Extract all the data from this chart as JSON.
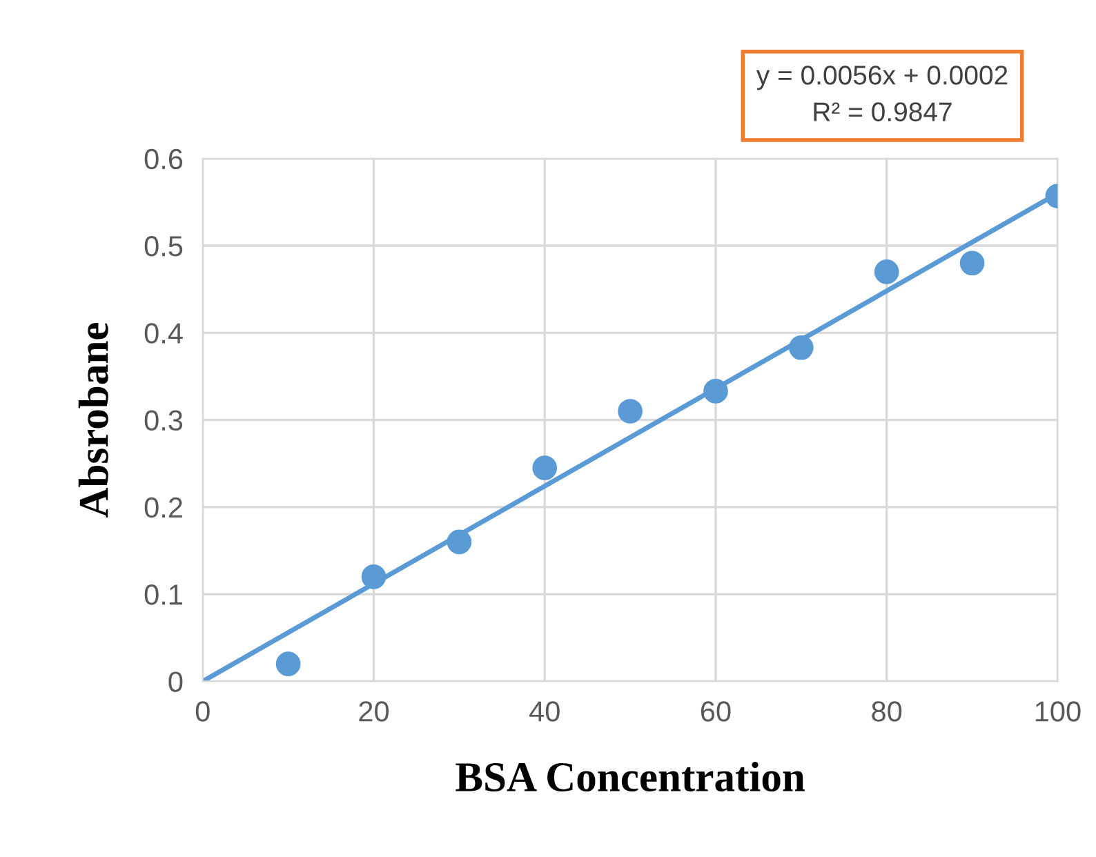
{
  "chart_data": {
    "type": "scatter",
    "xlabel": "BSA Concentration",
    "ylabel": "Absrobane",
    "x": [
      10,
      20,
      30,
      40,
      50,
      60,
      70,
      80,
      90,
      100
    ],
    "series": [
      {
        "color": "#5b9bd5",
        "marker": "circle",
        "values": [
          0.02,
          0.12,
          0.16,
          0.245,
          0.31,
          0.333,
          0.383,
          0.47,
          0.48,
          0.557
        ]
      },
      {
        "type": "line",
        "color": "#5b9bd5",
        "x": [
          0,
          100
        ],
        "values": [
          0,
          0.56
        ],
        "line_style": "solid"
      }
    ],
    "annotations": [
      "y = 0.0056x + 0.0002",
      "R² = 0.9847"
    ],
    "xlim": [
      0,
      100
    ],
    "xticks": [
      0,
      20,
      40,
      60,
      80,
      100
    ],
    "ylim": [
      0,
      0.6
    ],
    "yticks": [
      0,
      0.1,
      0.2,
      0.3,
      0.4,
      0.5,
      0.6
    ],
    "grid": true,
    "legend": false
  }
}
